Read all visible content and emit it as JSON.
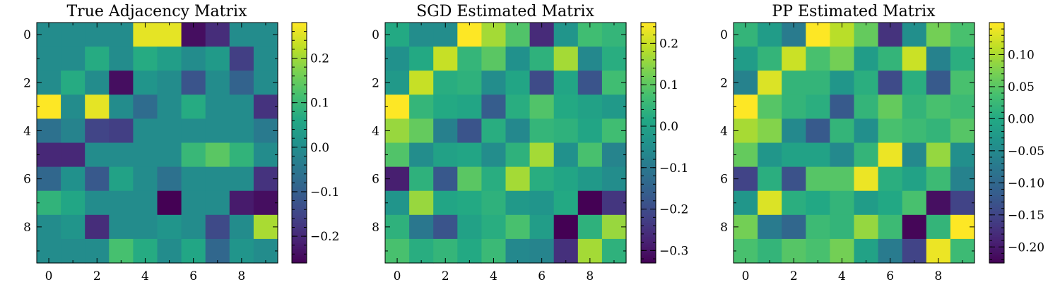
{
  "chart_data": [
    {
      "type": "heatmap",
      "title": "True Adjacency Matrix",
      "x_ticks": [
        "0",
        "2",
        "4",
        "6",
        "8"
      ],
      "y_ticks": [
        "0",
        "2",
        "4",
        "6",
        "8"
      ],
      "colorbar": {
        "min": -0.26,
        "max": 0.28,
        "ticks": [
          -0.2,
          -0.1,
          0.0,
          0.1,
          0.2
        ],
        "tick_labels": [
          "−0.2",
          "−0.1",
          "0.0",
          "0.1",
          "0.2"
        ]
      },
      "values": [
        [
          0,
          0,
          0,
          0,
          0.26,
          0.26,
          -0.24,
          -0.19,
          0,
          0
        ],
        [
          0,
          0,
          0.07,
          0,
          0.07,
          0.04,
          0,
          0.03,
          -0.16,
          0
        ],
        [
          0,
          0.07,
          0,
          -0.24,
          0.02,
          0,
          -0.12,
          0,
          -0.09,
          0
        ],
        [
          0.28,
          0,
          0.26,
          0,
          -0.07,
          0,
          0.07,
          0,
          0,
          -0.18
        ],
        [
          -0.06,
          -0.02,
          -0.15,
          -0.16,
          0,
          0,
          0,
          0,
          0,
          -0.04
        ],
        [
          -0.2,
          -0.2,
          0,
          0,
          0,
          0,
          0.1,
          0.14,
          0.09,
          0
        ],
        [
          -0.08,
          0.01,
          -0.11,
          0.05,
          0,
          -0.06,
          0,
          0,
          0,
          -0.18
        ],
        [
          0.09,
          0.06,
          0,
          0,
          0,
          -0.26,
          0,
          0,
          -0.22,
          -0.24
        ],
        [
          0,
          0.02,
          -0.19,
          0,
          0,
          0.02,
          0,
          -0.14,
          0,
          0.21
        ],
        [
          0,
          0,
          0,
          0.12,
          0.07,
          0,
          0.06,
          -0.08,
          0.02,
          0
        ]
      ]
    },
    {
      "type": "heatmap",
      "title": "SGD Estimated Matrix",
      "x_ticks": [
        "0",
        "2",
        "4",
        "6",
        "8"
      ],
      "y_ticks": [
        "0",
        "2",
        "4",
        "6",
        "8"
      ],
      "colorbar": {
        "min": -0.33,
        "max": 0.25,
        "ticks": [
          -0.3,
          -0.2,
          -0.1,
          0.0,
          0.1,
          0.2
        ],
        "tick_labels": [
          "−0.3",
          "−0.2",
          "−0.1",
          "0.0",
          "0.1",
          "0.2"
        ]
      },
      "values": [
        [
          0.02,
          -0.05,
          -0.05,
          0.25,
          0.17,
          0.09,
          -0.26,
          -0.03,
          0.07,
          0.05
        ],
        [
          -0.04,
          0.02,
          0.2,
          0.05,
          0.1,
          -0.04,
          0.04,
          0.17,
          -0.06,
          0.03
        ],
        [
          -0.02,
          0.2,
          0.03,
          0.04,
          -0.05,
          0.01,
          -0.2,
          0.01,
          -0.18,
          0.07
        ],
        [
          0.25,
          0.05,
          0.02,
          0.01,
          -0.16,
          0.03,
          0.09,
          0.02,
          0,
          -0.02
        ],
        [
          0.16,
          0.11,
          -0.08,
          -0.18,
          0.03,
          -0.06,
          0.05,
          0.04,
          0.01,
          0.07
        ],
        [
          0.09,
          -0.05,
          0,
          0.01,
          -0.05,
          0.04,
          0.17,
          -0.04,
          0.08,
          -0.07
        ],
        [
          -0.28,
          0.04,
          -0.17,
          0.1,
          0.03,
          0.17,
          0.03,
          0.01,
          -0.02,
          -0.05
        ],
        [
          -0.03,
          0.16,
          0.01,
          0.02,
          0.04,
          -0.02,
          -0.03,
          0.02,
          -0.33,
          -0.24
        ],
        [
          0.04,
          -0.1,
          -0.18,
          0,
          0.03,
          0.08,
          -0.01,
          -0.33,
          0.04,
          0.16
        ],
        [
          0.08,
          0.03,
          0.05,
          0.02,
          0.06,
          -0.06,
          -0.07,
          -0.25,
          0.17,
          0.04
        ]
      ]
    },
    {
      "type": "heatmap",
      "title": "PP Estimated Matrix",
      "x_ticks": [
        "0",
        "2",
        "4",
        "6",
        "8"
      ],
      "y_ticks": [
        "0",
        "2",
        "4",
        "6",
        "8"
      ],
      "colorbar": {
        "min": -0.225,
        "max": 0.15,
        "ticks": [
          -0.2,
          -0.15,
          -0.1,
          -0.05,
          0.0,
          0.05,
          0.1
        ],
        "tick_labels": [
          "−0.20",
          "−0.15",
          "−0.10",
          "−0.05",
          "0.00",
          "0.05",
          "0.10"
        ]
      },
      "values": [
        [
          0.02,
          -0.02,
          -0.07,
          0.15,
          0.11,
          0.06,
          -0.17,
          -0.04,
          0.07,
          0.04
        ],
        [
          -0.02,
          0.02,
          0.12,
          0.04,
          0.07,
          -0.02,
          0.02,
          0.12,
          -0.06,
          0.01
        ],
        [
          -0.06,
          0.13,
          0.02,
          0.02,
          -0.03,
          0.01,
          -0.14,
          0.01,
          -0.12,
          0.04
        ],
        [
          0.15,
          0.05,
          0.02,
          0.01,
          -0.12,
          0.02,
          0.06,
          0.02,
          0.04,
          0.03
        ],
        [
          0.1,
          0.08,
          -0.05,
          -0.12,
          0.02,
          -0.04,
          0.04,
          0.03,
          0.02,
          0.05
        ],
        [
          0.06,
          -0.03,
          -0.01,
          -0.01,
          -0.05,
          0.02,
          0.14,
          -0.05,
          0.09,
          -0.04
        ],
        [
          -0.15,
          0.01,
          -0.13,
          0.05,
          0.05,
          0.14,
          0.01,
          -0.01,
          0.03,
          -0.06
        ],
        [
          -0.03,
          0.13,
          0.01,
          0,
          0.02,
          -0.02,
          0,
          0.04,
          -0.21,
          -0.15
        ],
        [
          0.07,
          -0.07,
          -0.1,
          0.03,
          0.02,
          0.09,
          0.03,
          -0.22,
          0.02,
          0.15
        ],
        [
          0.04,
          0.02,
          0.05,
          0.04,
          0.07,
          -0.01,
          -0.07,
          -0.15,
          0.14,
          0.03
        ]
      ]
    }
  ]
}
